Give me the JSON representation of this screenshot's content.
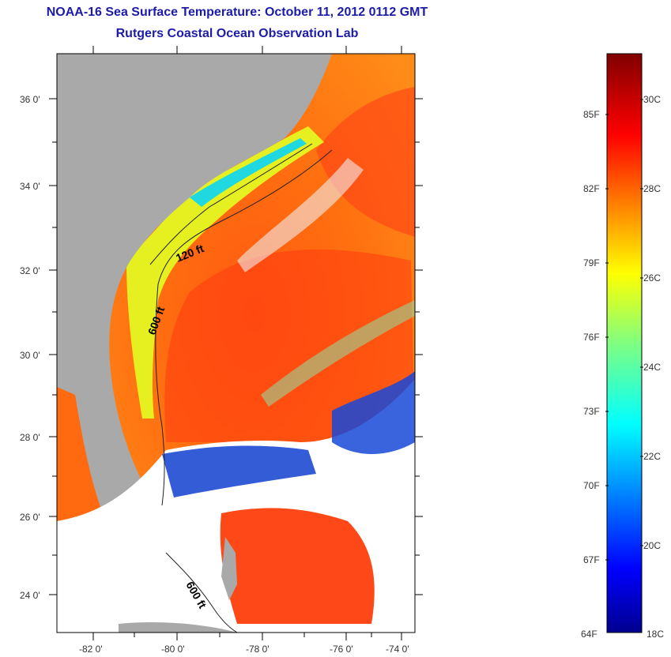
{
  "title": {
    "line1": "NOAA-16 Sea Surface Temperature:  October 11, 2012 0112 GMT",
    "line2": "Rutgers Coastal Ocean Observation Lab"
  },
  "map": {
    "lat_labels": [
      "36 0'",
      "34 0'",
      "32 0'",
      "30 0'",
      "28 0'",
      "26 0'",
      "24 0'"
    ],
    "lon_labels": [
      "-82 0'",
      "-80 0'",
      "-78 0'",
      "-76 0'",
      "-74 0'"
    ],
    "contour_labels": [
      "120 ft",
      "600 ft",
      "600 ft"
    ],
    "colors": {
      "land": "#a9a9a9",
      "cloud": "#ffffff",
      "warm_core": "#ff3a10",
      "warm": "#ff7a10",
      "coastal_yellow": "#e8f020",
      "coastal_cyan": "#20e0e0",
      "cold": "#0020c0"
    }
  },
  "colorbar": {
    "fahrenheit_labels": [
      "85F",
      "82F",
      "79F",
      "76F",
      "73F",
      "70F",
      "67F",
      "64F"
    ],
    "celsius_labels": [
      "30C",
      "28C",
      "26C",
      "24C",
      "22C",
      "20C",
      "18C"
    ],
    "range_c": [
      18,
      31
    ],
    "colormap": "jet"
  }
}
